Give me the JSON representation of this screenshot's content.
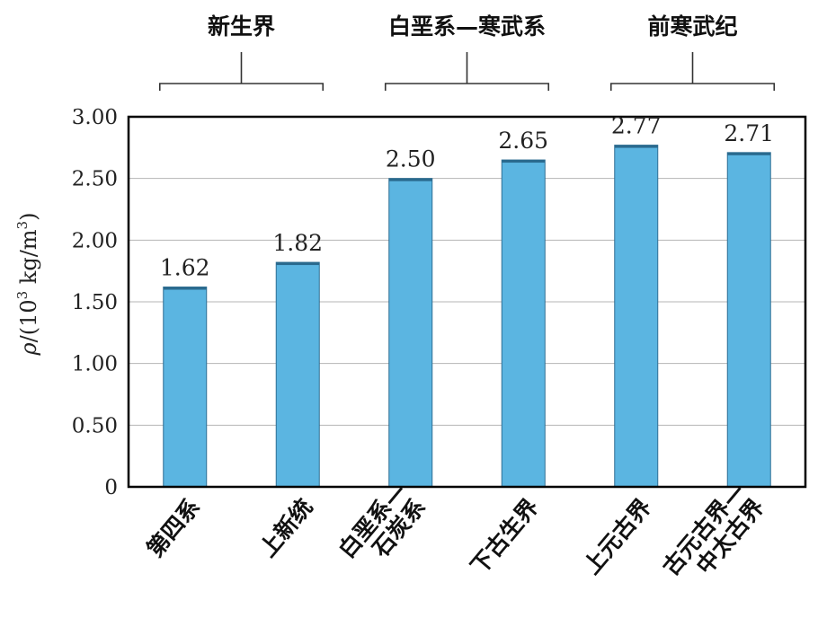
{
  "chart_data": {
    "type": "bar",
    "categories": [
      [
        "第四系"
      ],
      [
        "上新统"
      ],
      [
        "白垩系—",
        "石炭系"
      ],
      [
        "下古生界"
      ],
      [
        "上元古界"
      ],
      [
        "古元古界—",
        "中太古界"
      ]
    ],
    "values": [
      1.62,
      1.82,
      2.5,
      2.65,
      2.77,
      2.71
    ],
    "value_labels": [
      "1.62",
      "1.82",
      "2.50",
      "2.65",
      "2.77",
      "2.71"
    ],
    "ylabel": {
      "symbol": "ρ",
      "prefix": "/(10",
      "exp": "3",
      "mid": " kg/m",
      "exp2": "3",
      "suffix": ")"
    },
    "ylim": [
      0,
      3.0
    ],
    "yticks": [
      {
        "value": 0,
        "label": "0"
      },
      {
        "value": 0.5,
        "label": "0.50"
      },
      {
        "value": 1.0,
        "label": "1.00"
      },
      {
        "value": 1.5,
        "label": "1.50"
      },
      {
        "value": 2.0,
        "label": "2.00"
      },
      {
        "value": 2.5,
        "label": "2.50"
      },
      {
        "value": 3.0,
        "label": "3.00"
      }
    ],
    "grid": true,
    "bar_color": "#5bb5e1",
    "groups": [
      {
        "label": "新生界",
        "from": 0,
        "to": 1
      },
      {
        "label": "白垩系—寒武系",
        "from": 2,
        "to": 3
      },
      {
        "label": "前寒武纪",
        "from": 4,
        "to": 5
      }
    ]
  }
}
